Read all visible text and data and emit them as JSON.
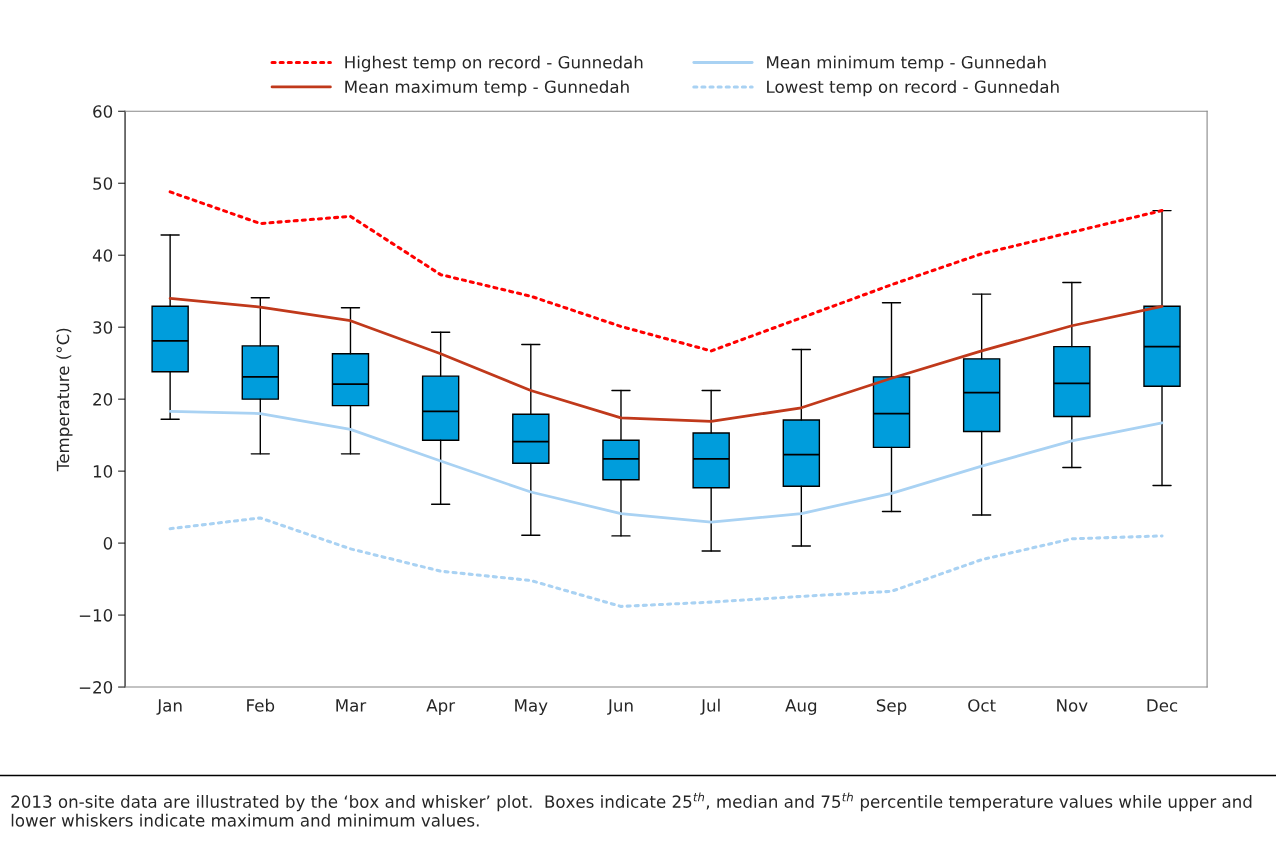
{
  "chart_data": {
    "type": "box",
    "ylabel": "Temperature (°C)",
    "categories": [
      "Jan",
      "Feb",
      "Mar",
      "Apr",
      "May",
      "Jun",
      "Jul",
      "Aug",
      "Sep",
      "Oct",
      "Nov",
      "Dec"
    ],
    "color": "#009ddc",
    "boxes": [
      {
        "low": 17.2,
        "q1": 23.8,
        "median": 28.1,
        "q3": 32.9,
        "high": 42.8
      },
      {
        "low": 12.4,
        "q1": 20.0,
        "median": 23.1,
        "q3": 27.4,
        "high": 34.1
      },
      {
        "low": 12.4,
        "q1": 19.1,
        "median": 22.1,
        "q3": 26.3,
        "high": 32.7
      },
      {
        "low": 5.4,
        "q1": 14.3,
        "median": 18.3,
        "q3": 23.2,
        "high": 29.3
      },
      {
        "low": 1.1,
        "q1": 11.1,
        "median": 14.1,
        "q3": 17.9,
        "high": 27.6
      },
      {
        "low": 1.0,
        "q1": 8.8,
        "median": 11.7,
        "q3": 14.3,
        "high": 21.2
      },
      {
        "low": -1.1,
        "q1": 7.7,
        "median": 11.7,
        "q3": 15.3,
        "high": 21.2
      },
      {
        "low": -0.4,
        "q1": 7.9,
        "median": 12.3,
        "q3": 17.1,
        "high": 26.9
      },
      {
        "low": 4.4,
        "q1": 13.3,
        "median": 18.0,
        "q3": 23.1,
        "high": 33.4
      },
      {
        "low": 3.9,
        "q1": 15.5,
        "median": 20.9,
        "q3": 25.6,
        "high": 34.6
      },
      {
        "low": 10.5,
        "q1": 17.6,
        "median": 22.2,
        "q3": 27.3,
        "high": 36.2
      },
      {
        "low": 8.0,
        "q1": 21.8,
        "median": 27.3,
        "q3": 32.9,
        "high": 46.2
      }
    ],
    "series": [
      {
        "type": "line",
        "name": "Highest temp on record - Gunnedah",
        "color": "#ff0000",
        "line_style": "dotted",
        "values": [
          48.8,
          44.4,
          45.4,
          37.3,
          34.3,
          30.1,
          26.7,
          31.3,
          35.9,
          40.2,
          43.2,
          46.2
        ]
      },
      {
        "type": "line",
        "name": "Mean maximum temp - Gunnedah",
        "color": "#c0391b",
        "line_style": "solid",
        "values": [
          34.0,
          32.8,
          30.9,
          26.3,
          21.2,
          17.4,
          16.9,
          18.8,
          22.9,
          26.7,
          30.2,
          32.9
        ]
      },
      {
        "type": "line",
        "name": "Mean minimum temp - Gunnedah",
        "color": "#a9d2f3",
        "line_style": "solid",
        "values": [
          18.3,
          18.0,
          15.8,
          11.4,
          7.1,
          4.1,
          2.9,
          4.1,
          6.9,
          10.7,
          14.2,
          16.7
        ]
      },
      {
        "type": "line",
        "name": "Lowest temp on record - Gunnedah",
        "color": "#a9d2f3",
        "line_style": "dotted",
        "values": [
          2.0,
          3.5,
          -0.8,
          -3.9,
          -5.2,
          -8.8,
          -8.2,
          -7.4,
          -6.7,
          -2.3,
          0.6,
          1.0
        ]
      }
    ],
    "ylim": [
      -20,
      60
    ],
    "yticks": [
      -20,
      -10,
      0,
      10,
      20,
      30,
      40,
      50,
      60
    ],
    "legend": "top",
    "grid": false,
    "annotations": [
      "2013 on-site data are illustrated by the ‘box and whisker’ plot.  Boxes indicate 25$^{th}$, median and 75$^{th}$ percentile temperature values while upper and lower whiskers indicate maximum and minimum values."
    ]
  }
}
